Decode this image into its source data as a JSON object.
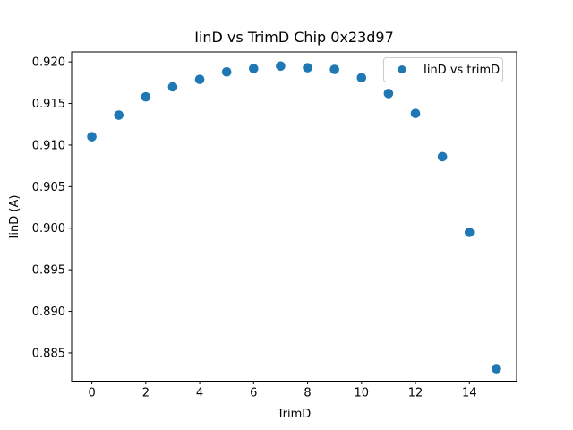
{
  "chart_data": {
    "type": "scatter",
    "title": "IinD vs TrimD Chip 0x23d97",
    "xlabel": "TrimD",
    "ylabel": "IinD (A)",
    "legend": {
      "label": "IinD vs trimD",
      "position": "upper right"
    },
    "x": [
      0,
      1,
      2,
      3,
      4,
      5,
      6,
      7,
      8,
      9,
      10,
      11,
      12,
      13,
      14,
      15
    ],
    "y": [
      0.911,
      0.9136,
      0.9158,
      0.917,
      0.9179,
      0.9188,
      0.9192,
      0.9195,
      0.9193,
      0.9191,
      0.9181,
      0.9162,
      0.9138,
      0.9086,
      0.8995,
      0.8831
    ],
    "xticks": [
      0,
      2,
      4,
      6,
      8,
      10,
      12,
      14
    ],
    "yticks": [
      0.885,
      0.89,
      0.895,
      0.9,
      0.905,
      0.91,
      0.915,
      0.92
    ],
    "ytick_decimals": 3,
    "xlim": [
      -0.75,
      15.75
    ],
    "ylim": [
      0.8816,
      0.9212
    ],
    "grid": false,
    "marker_color": "#1f77b4",
    "axis_color": "#000000",
    "legend_border_color": "#cccccc",
    "background": "#ffffff"
  }
}
